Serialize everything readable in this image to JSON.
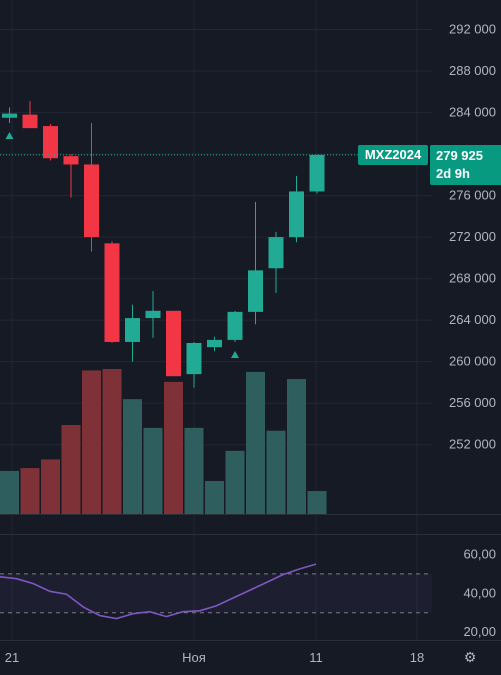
{
  "colors": {
    "background": "#161a25",
    "up": "#22ab94",
    "down": "#f23645",
    "volume_up": "#2e5e5d",
    "volume_down": "#7e3237",
    "oscillator": "#7e57c2",
    "grid": "#232733",
    "axis_text": "#b2b5be"
  },
  "symbol_label": "MXZ2024",
  "last_price_label": "279 925",
  "countdown_label": "2d 9h",
  "x_tick_labels": [
    "21",
    "Ноя",
    "11",
    "18"
  ],
  "price_tick_labels": [
    "292 000",
    "288 000",
    "284 000",
    "280 000",
    "276 000",
    "272 000",
    "268 000",
    "264 000",
    "260 000",
    "256 000",
    "252 000"
  ],
  "osc_tick_labels": [
    "60,00",
    "40,00",
    "20,00"
  ],
  "chart_data": {
    "type": "candlestick",
    "price_axis": {
      "ylim": [
        248600,
        293400
      ],
      "ticks": [
        292000,
        288000,
        284000,
        280000,
        276000,
        272000,
        268000,
        264000,
        260000,
        256000,
        252000
      ]
    },
    "last_price": 279925,
    "candles": [
      {
        "o": 283500,
        "h": 284500,
        "l": 283000,
        "c": 283900
      },
      {
        "o": 283800,
        "h": 285100,
        "l": 282500,
        "c": 282500
      },
      {
        "o": 282700,
        "h": 282900,
        "l": 279400,
        "c": 279600
      },
      {
        "o": 279800,
        "h": 280000,
        "l": 275800,
        "c": 279000
      },
      {
        "o": 279000,
        "h": 283000,
        "l": 270600,
        "c": 272000
      },
      {
        "o": 271400,
        "h": 271600,
        "l": 261800,
        "c": 261900
      },
      {
        "o": 261900,
        "h": 265500,
        "l": 260000,
        "c": 264200
      },
      {
        "o": 264200,
        "h": 266800,
        "l": 262300,
        "c": 264900
      },
      {
        "o": 264900,
        "h": 264900,
        "l": 258600,
        "c": 258600
      },
      {
        "o": 258800,
        "h": 261900,
        "l": 257500,
        "c": 261800
      },
      {
        "o": 261400,
        "h": 262400,
        "l": 261000,
        "c": 262100
      },
      {
        "o": 262100,
        "h": 264900,
        "l": 261900,
        "c": 264800
      },
      {
        "o": 264800,
        "h": 275400,
        "l": 263600,
        "c": 268800
      },
      {
        "o": 269000,
        "h": 272500,
        "l": 266600,
        "c": 272000
      },
      {
        "o": 272000,
        "h": 277900,
        "l": 271500,
        "c": 276400
      },
      {
        "o": 276400,
        "h": 279925,
        "l": 276200,
        "c": 279925
      }
    ],
    "volume": [
      {
        "v": 30,
        "dir": "up"
      },
      {
        "v": 32,
        "dir": "down"
      },
      {
        "v": 38,
        "dir": "down"
      },
      {
        "v": 62,
        "dir": "down"
      },
      {
        "v": 100,
        "dir": "down"
      },
      {
        "v": 101,
        "dir": "down"
      },
      {
        "v": 80,
        "dir": "up"
      },
      {
        "v": 60,
        "dir": "up"
      },
      {
        "v": 92,
        "dir": "down"
      },
      {
        "v": 60,
        "dir": "up"
      },
      {
        "v": 23,
        "dir": "up"
      },
      {
        "v": 44,
        "dir": "up"
      },
      {
        "v": 99,
        "dir": "up"
      },
      {
        "v": 58,
        "dir": "up"
      },
      {
        "v": 94,
        "dir": "up"
      },
      {
        "v": 16,
        "dir": "up"
      }
    ],
    "markers": [
      {
        "candle": 0,
        "type": "triangle-up"
      },
      {
        "candle": 11,
        "type": "triangle-up"
      }
    ],
    "oscillator": {
      "ylim": [
        18,
        70
      ],
      "ticks": [
        60,
        40,
        20
      ],
      "band": [
        30,
        50
      ],
      "values": [
        48.5,
        47.5,
        45,
        41,
        39.5,
        33,
        28.5,
        27,
        29.5,
        30.5,
        28,
        30.5,
        31,
        33.5,
        37.5,
        41.5,
        45.5,
        49.5,
        52.5,
        55
      ]
    }
  }
}
